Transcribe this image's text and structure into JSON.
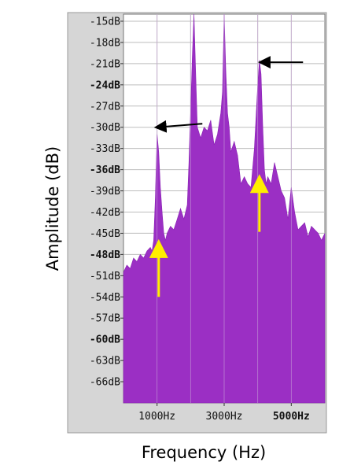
{
  "chart_data": {
    "type": "area",
    "title": "",
    "xlabel": "Frequency (Hz)",
    "ylabel": "Amplitude (dB)",
    "x_unit": "Hz",
    "y_unit": "dB",
    "xlim": [
      0,
      6000
    ],
    "ylim": [
      -69,
      -14
    ],
    "x_ticks": [
      {
        "value": 1000,
        "label": "1000Hz",
        "bold": false
      },
      {
        "value": 3000,
        "label": "3000Hz",
        "bold": false
      },
      {
        "value": 5000,
        "label": "5000Hz",
        "bold": true
      }
    ],
    "x_minor_gridlines": [
      2000,
      4000
    ],
    "y_ticks": [
      {
        "value": -15,
        "label": "-15dB",
        "bold": false
      },
      {
        "value": -18,
        "label": "-18dB",
        "bold": false
      },
      {
        "value": -21,
        "label": "-21dB",
        "bold": false
      },
      {
        "value": -24,
        "label": "-24dB",
        "bold": true
      },
      {
        "value": -27,
        "label": "-27dB",
        "bold": false
      },
      {
        "value": -30,
        "label": "-30dB",
        "bold": false
      },
      {
        "value": -33,
        "label": "-33dB",
        "bold": false
      },
      {
        "value": -36,
        "label": "-36dB",
        "bold": true
      },
      {
        "value": -39,
        "label": "-39dB",
        "bold": false
      },
      {
        "value": -42,
        "label": "-42dB",
        "bold": false
      },
      {
        "value": -45,
        "label": "-45dB",
        "bold": false
      },
      {
        "value": -48,
        "label": "-48dB",
        "bold": true
      },
      {
        "value": -51,
        "label": "-51dB",
        "bold": false
      },
      {
        "value": -54,
        "label": "-54dB",
        "bold": false
      },
      {
        "value": -57,
        "label": "-57dB",
        "bold": false
      },
      {
        "value": -60,
        "label": "-60dB",
        "bold": true
      },
      {
        "value": -63,
        "label": "-63dB",
        "bold": false
      },
      {
        "value": -66,
        "label": "-66dB",
        "bold": false
      }
    ],
    "grid": true,
    "fill_color": "#9b2fc4",
    "series": [
      {
        "x": [
          0,
          100,
          200,
          300,
          400,
          500,
          600,
          700,
          800,
          850,
          900,
          950,
          1000,
          1050,
          1100,
          1150,
          1200,
          1250,
          1300,
          1400,
          1500,
          1600,
          1700,
          1800,
          1900,
          1950,
          2000,
          2050,
          2100,
          2150,
          2200,
          2300,
          2400,
          2500,
          2600,
          2700,
          2800,
          2900,
          2950,
          3000,
          3050,
          3100,
          3150,
          3200,
          3300,
          3400,
          3500,
          3600,
          3700,
          3800,
          3900,
          4000,
          4050,
          4100,
          4150,
          4200,
          4250,
          4300,
          4400,
          4500,
          4600,
          4700,
          4800,
          4900,
          5000,
          5100,
          5200,
          5300,
          5400,
          5500,
          5600,
          5700,
          5800,
          5900,
          6000
        ],
        "y": [
          -50.5,
          -49.5,
          -50,
          -48.5,
          -49,
          -48,
          -48.5,
          -47.5,
          -47,
          -47.5,
          -46,
          -40,
          -31,
          -33.5,
          -38.5,
          -42,
          -45,
          -46,
          -45,
          -44,
          -44.5,
          -43,
          -41.5,
          -43,
          -41,
          -35,
          -28,
          -20,
          -14,
          -22,
          -30,
          -31.5,
          -30,
          -30.5,
          -29,
          -32.5,
          -31,
          -28,
          -25,
          -14,
          -22,
          -28,
          -30,
          -33.5,
          -32,
          -34,
          -38,
          -37,
          -38,
          -38.5,
          -33,
          -24,
          -20.5,
          -22.5,
          -30,
          -36,
          -38,
          -37,
          -38,
          -35,
          -37,
          -39,
          -40,
          -43,
          -38.5,
          -42,
          -44.5,
          -44,
          -43.5,
          -45.5,
          -44,
          -44.5,
          -45,
          -46,
          -45
        ]
      }
    ],
    "annotations": [
      {
        "type": "arrow",
        "color": "#000000",
        "from": [
          2350,
          -29.5
        ],
        "to": [
          1000,
          -30
        ],
        "points_at": "peak near 1000Hz"
      },
      {
        "type": "arrow",
        "color": "#000000",
        "from": [
          5350,
          -20.8
        ],
        "to": [
          4100,
          -20.8
        ],
        "points_at": "peak near 4100Hz"
      },
      {
        "type": "arrow",
        "color": "#ffee00",
        "from": [
          1050,
          -54
        ],
        "to": [
          1050,
          -46.5
        ],
        "points_at": "trough near 1050Hz"
      },
      {
        "type": "arrow",
        "color": "#ffee00",
        "from": [
          4050,
          -44.8
        ],
        "to": [
          4050,
          -37.3
        ],
        "points_at": "trough near 4050Hz"
      }
    ]
  }
}
